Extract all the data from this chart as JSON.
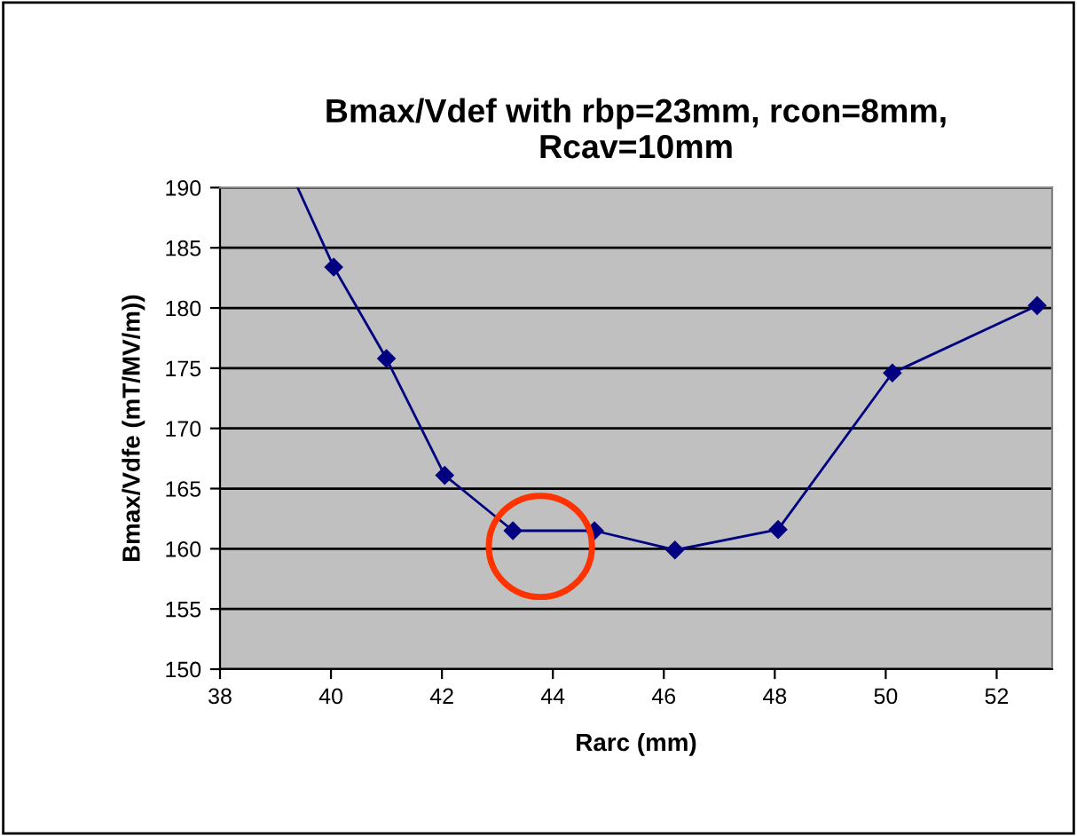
{
  "chart_data": {
    "type": "line",
    "title": "Bmax/Vdef with rbp=23mm, rcon=8mm,\nRcav=10mm",
    "xlabel": "Rarc (mm)",
    "ylabel": "Bmax/Vdfe (mT/MV/m))",
    "series": [
      {
        "color": "#000080",
        "marker": "diamond",
        "x": [
          40.05,
          41.0,
          42.05,
          43.28,
          44.75,
          46.2,
          48.06,
          50.12,
          52.73
        ],
        "values": [
          183.4,
          175.8,
          166.1,
          161.5,
          161.5,
          159.9,
          161.6,
          174.6,
          180.2
        ]
      },
      {
        "color": "#000080",
        "marker": "none",
        "x": [
          39.4,
          40.05
        ],
        "values": [
          190,
          183.4
        ]
      }
    ],
    "xlim": [
      38,
      53
    ],
    "xticks": [
      38,
      40,
      42,
      44,
      46,
      48,
      50,
      52
    ],
    "ylim": [
      150,
      190
    ],
    "yticks": [
      150,
      155,
      160,
      165,
      170,
      175,
      180,
      185,
      190
    ],
    "grid": "y",
    "legend": false
  }
}
